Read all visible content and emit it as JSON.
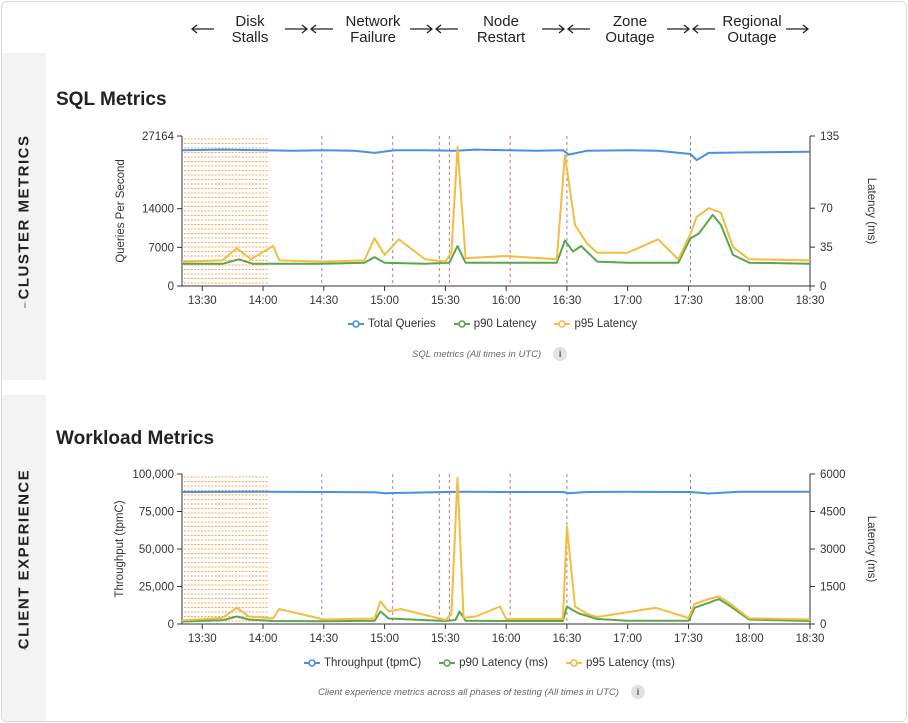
{
  "phases": [
    {
      "label": "Disk\nStalls",
      "line1": "Disk",
      "line2": "Stalls"
    },
    {
      "label": "Network\nFailure",
      "line1": "Network",
      "line2": "Failure"
    },
    {
      "label": "Node\nRestart",
      "line1": "Node",
      "line2": "Restart"
    },
    {
      "label": "Zone\nOutage",
      "line1": "Zone",
      "line2": "Outage"
    },
    {
      "label": "Regional\nOutage",
      "line1": "Regional",
      "line2": "Outage"
    }
  ],
  "sections": {
    "cluster": {
      "side_label": "CLUSTER METRICS",
      "info": "i"
    },
    "client": {
      "side_label": "CLIENT EXPERIENCE",
      "info": "i"
    }
  },
  "colors": {
    "blue": "#4a90e2",
    "green": "#5aa64b",
    "yellow": "#f2bd42",
    "stall": "#f5a75a",
    "purple": "#b173d9",
    "red": "#e06b6b",
    "gray": "#8a8a9a"
  },
  "chart_data": [
    {
      "type": "line",
      "title": "SQL Metrics",
      "ylabel": "Queries Per Second",
      "y2label": "Latency (ms)",
      "caption": "SQL metrics (All times in UTC)",
      "xticks": [
        "13:30",
        "14:00",
        "14:30",
        "15:00",
        "15:30",
        "16:00",
        "16:30",
        "17:00",
        "17:30",
        "18:00",
        "18:30"
      ],
      "xlim": [
        "13:20",
        "18:30"
      ],
      "yticks": [
        0,
        7000,
        14000,
        27164
      ],
      "ylim": [
        0,
        27164
      ],
      "y2ticks": [
        0,
        35,
        70,
        135
      ],
      "y2lim": [
        0,
        135
      ],
      "series": [
        {
          "name": "Total Queries",
          "axis": "left",
          "color": "blue",
          "x": [
            "13:20",
            "13:40",
            "14:00",
            "14:15",
            "14:30",
            "14:45",
            "14:55",
            "15:05",
            "15:20",
            "15:35",
            "15:45",
            "16:00",
            "16:15",
            "16:28",
            "16:31",
            "16:40",
            "17:00",
            "17:15",
            "17:31",
            "17:34",
            "17:40",
            "18:00",
            "18:30"
          ],
          "values": [
            24600,
            24700,
            24600,
            24500,
            24600,
            24500,
            24100,
            24600,
            24600,
            24500,
            24700,
            24600,
            24500,
            24600,
            23800,
            24500,
            24600,
            24500,
            23900,
            22800,
            24100,
            24200,
            24300
          ]
        },
        {
          "name": "p90 Latency",
          "axis": "right",
          "color": "green",
          "x": [
            "13:20",
            "13:40",
            "13:48",
            "13:55",
            "14:05",
            "14:30",
            "14:50",
            "14:55",
            "15:00",
            "15:20",
            "15:32",
            "15:36",
            "15:40",
            "16:00",
            "16:25",
            "16:29",
            "16:33",
            "16:37",
            "16:45",
            "17:00",
            "17:25",
            "17:31",
            "17:35",
            "17:42",
            "17:46",
            "17:52",
            "18:00",
            "18:30"
          ],
          "values": [
            20,
            20,
            24,
            20,
            20,
            20,
            21,
            26,
            21,
            20,
            21,
            36,
            21,
            21,
            21,
            41,
            31,
            36,
            22,
            21,
            21,
            43,
            47,
            64,
            55,
            28,
            21,
            20
          ]
        },
        {
          "name": "p95 Latency",
          "axis": "right",
          "color": "yellow",
          "x": [
            "13:20",
            "13:40",
            "13:47",
            "13:54",
            "14:05",
            "14:08",
            "14:30",
            "14:50",
            "14:55",
            "15:00",
            "15:07",
            "15:20",
            "15:30",
            "15:33",
            "15:36",
            "15:40",
            "16:00",
            "16:25",
            "16:29",
            "16:34",
            "16:40",
            "16:45",
            "17:00",
            "17:15",
            "17:25",
            "17:31",
            "17:34",
            "17:40",
            "17:46",
            "17:52",
            "18:00",
            "18:30"
          ],
          "values": [
            22,
            23,
            34,
            24,
            36,
            23,
            22,
            23,
            43,
            28,
            42,
            24,
            22,
            30,
            125,
            25,
            27,
            24,
            118,
            55,
            38,
            30,
            30,
            42,
            24,
            47,
            62,
            70,
            66,
            35,
            24,
            23
          ]
        }
      ],
      "events": [
        {
          "time": "15:04",
          "kind": "purple"
        },
        {
          "time": "14:29",
          "kind": "purple"
        },
        {
          "time": "15:27",
          "kind": "red"
        },
        {
          "time": "15:32",
          "kind": "red"
        },
        {
          "time": "16:02",
          "kind": "red"
        },
        {
          "time": "16:30",
          "kind": "gray"
        },
        {
          "time": "17:31",
          "kind": "gray"
        }
      ],
      "stall_window": [
        "13:21",
        "14:03"
      ]
    },
    {
      "type": "line",
      "title": "Workload Metrics",
      "ylabel": "Throughput (tpmC)",
      "y2label": "Latency (ms)",
      "caption": "Client experience metrics across all phases of testing (All times in UTC)",
      "xticks": [
        "13:30",
        "14:00",
        "14:30",
        "15:00",
        "15:30",
        "16:00",
        "16:30",
        "17:00",
        "17:30",
        "18:00",
        "18:30"
      ],
      "xlim": [
        "13:20",
        "18:30"
      ],
      "yticks": [
        "0",
        "25,000",
        "50,000",
        "75,000",
        "100,000"
      ],
      "ylim": [
        0,
        100000
      ],
      "y2ticks": [
        0,
        1500,
        3000,
        4500,
        6000
      ],
      "y2lim": [
        0,
        6000
      ],
      "series": [
        {
          "name": "Throughput (tpmC)",
          "axis": "left",
          "color": "blue",
          "x": [
            "13:20",
            "14:00",
            "14:30",
            "14:55",
            "15:00",
            "15:30",
            "15:40",
            "16:00",
            "16:28",
            "16:31",
            "16:40",
            "17:00",
            "17:31",
            "17:40",
            "17:55",
            "18:30"
          ],
          "values": [
            88000,
            88200,
            88000,
            87800,
            87200,
            88000,
            88100,
            88000,
            88000,
            87200,
            88000,
            88100,
            88000,
            87000,
            88200,
            88100
          ]
        },
        {
          "name": "p90 Latency (ms)",
          "axis": "right",
          "color": "green",
          "x": [
            "13:20",
            "13:40",
            "13:47",
            "13:53",
            "14:05",
            "14:30",
            "14:55",
            "14:58",
            "15:02",
            "15:30",
            "15:35",
            "15:37",
            "15:40",
            "16:00",
            "16:28",
            "16:30",
            "16:33",
            "16:36",
            "16:45",
            "17:00",
            "17:30",
            "17:33",
            "17:40",
            "17:45",
            "17:50",
            "18:00",
            "18:30"
          ],
          "values": [
            100,
            150,
            300,
            180,
            120,
            110,
            130,
            500,
            220,
            120,
            160,
            500,
            130,
            120,
            120,
            700,
            550,
            420,
            200,
            130,
            130,
            650,
            850,
            1000,
            750,
            180,
            120
          ]
        },
        {
          "name": "p95 Latency (ms)",
          "axis": "right",
          "color": "yellow",
          "x": [
            "13:20",
            "13:40",
            "13:47",
            "13:53",
            "14:05",
            "14:08",
            "14:30",
            "14:55",
            "14:58",
            "15:02",
            "15:08",
            "15:30",
            "15:33",
            "15:36",
            "15:39",
            "15:45",
            "15:57",
            "16:00",
            "16:28",
            "16:30",
            "16:34",
            "16:40",
            "16:45",
            "17:10",
            "17:14",
            "17:30",
            "17:33",
            "17:40",
            "17:45",
            "17:50",
            "18:00",
            "18:30"
          ],
          "values": [
            140,
            250,
            650,
            300,
            220,
            600,
            180,
            220,
            900,
            500,
            600,
            160,
            400,
            5850,
            250,
            300,
            700,
            200,
            200,
            3900,
            700,
            400,
            280,
            600,
            650,
            240,
            800,
            1000,
            1100,
            850,
            230,
            180
          ]
        }
      ],
      "events": [
        {
          "time": "14:29",
          "kind": "purple"
        },
        {
          "time": "15:04",
          "kind": "purple"
        },
        {
          "time": "15:27",
          "kind": "red"
        },
        {
          "time": "15:32",
          "kind": "red"
        },
        {
          "time": "16:02",
          "kind": "red"
        },
        {
          "time": "16:30",
          "kind": "gray"
        },
        {
          "time": "17:31",
          "kind": "gray"
        }
      ],
      "stall_window": [
        "13:21",
        "14:03"
      ]
    }
  ]
}
